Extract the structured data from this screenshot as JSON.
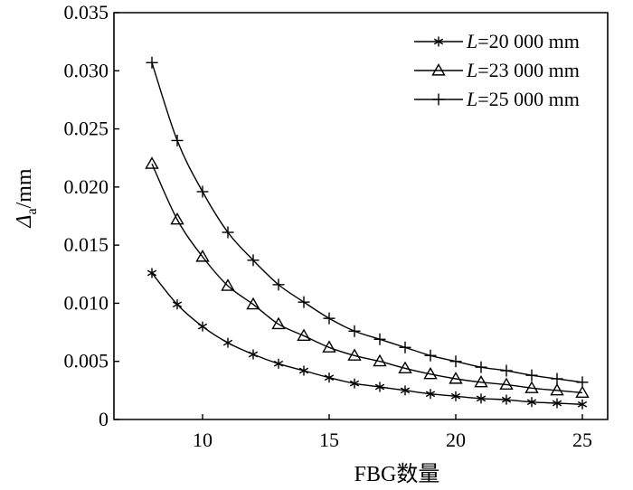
{
  "chart_data": {
    "type": "line",
    "xlabel": "FBG数量",
    "ylabel_symbol": "Δ",
    "ylabel_sub": "a",
    "ylabel_unit": "/mm",
    "xlim": [
      6.5,
      26
    ],
    "ylim": [
      0,
      0.035
    ],
    "xticks": [
      10,
      15,
      20,
      25
    ],
    "yticks": [
      0,
      0.005,
      0.01,
      0.015,
      0.02,
      0.025,
      0.03,
      0.035
    ],
    "ytick_labels": [
      "0",
      "0.005",
      "0.010",
      "0.015",
      "0.020",
      "0.025",
      "0.030",
      "0.035"
    ],
    "grid": false,
    "legend_position": "top-right",
    "x": [
      8,
      9,
      10,
      11,
      12,
      13,
      14,
      15,
      16,
      17,
      18,
      19,
      20,
      21,
      22,
      23,
      24,
      25
    ],
    "series": [
      {
        "name_var": "L",
        "name_rest": "=20 000 mm",
        "marker": "star",
        "values": [
          0.0126,
          0.0099,
          0.008,
          0.0066,
          0.0056,
          0.0048,
          0.0042,
          0.0036,
          0.0031,
          0.0028,
          0.0025,
          0.0022,
          0.002,
          0.0018,
          0.0017,
          0.0015,
          0.0014,
          0.0013
        ]
      },
      {
        "name_var": "L",
        "name_rest": "=23 000 mm",
        "marker": "triangle",
        "values": [
          0.022,
          0.0172,
          0.014,
          0.0115,
          0.0099,
          0.0082,
          0.0072,
          0.0062,
          0.0055,
          0.005,
          0.0044,
          0.0039,
          0.0035,
          0.0032,
          0.003,
          0.0027,
          0.0025,
          0.0023
        ]
      },
      {
        "name_var": "L",
        "name_rest": "=25 000 mm",
        "marker": "plus",
        "values": [
          0.0307,
          0.024,
          0.0196,
          0.0161,
          0.0137,
          0.0116,
          0.0101,
          0.0087,
          0.0076,
          0.0069,
          0.0062,
          0.0055,
          0.005,
          0.0045,
          0.0042,
          0.0038,
          0.0035,
          0.0032
        ]
      }
    ]
  }
}
